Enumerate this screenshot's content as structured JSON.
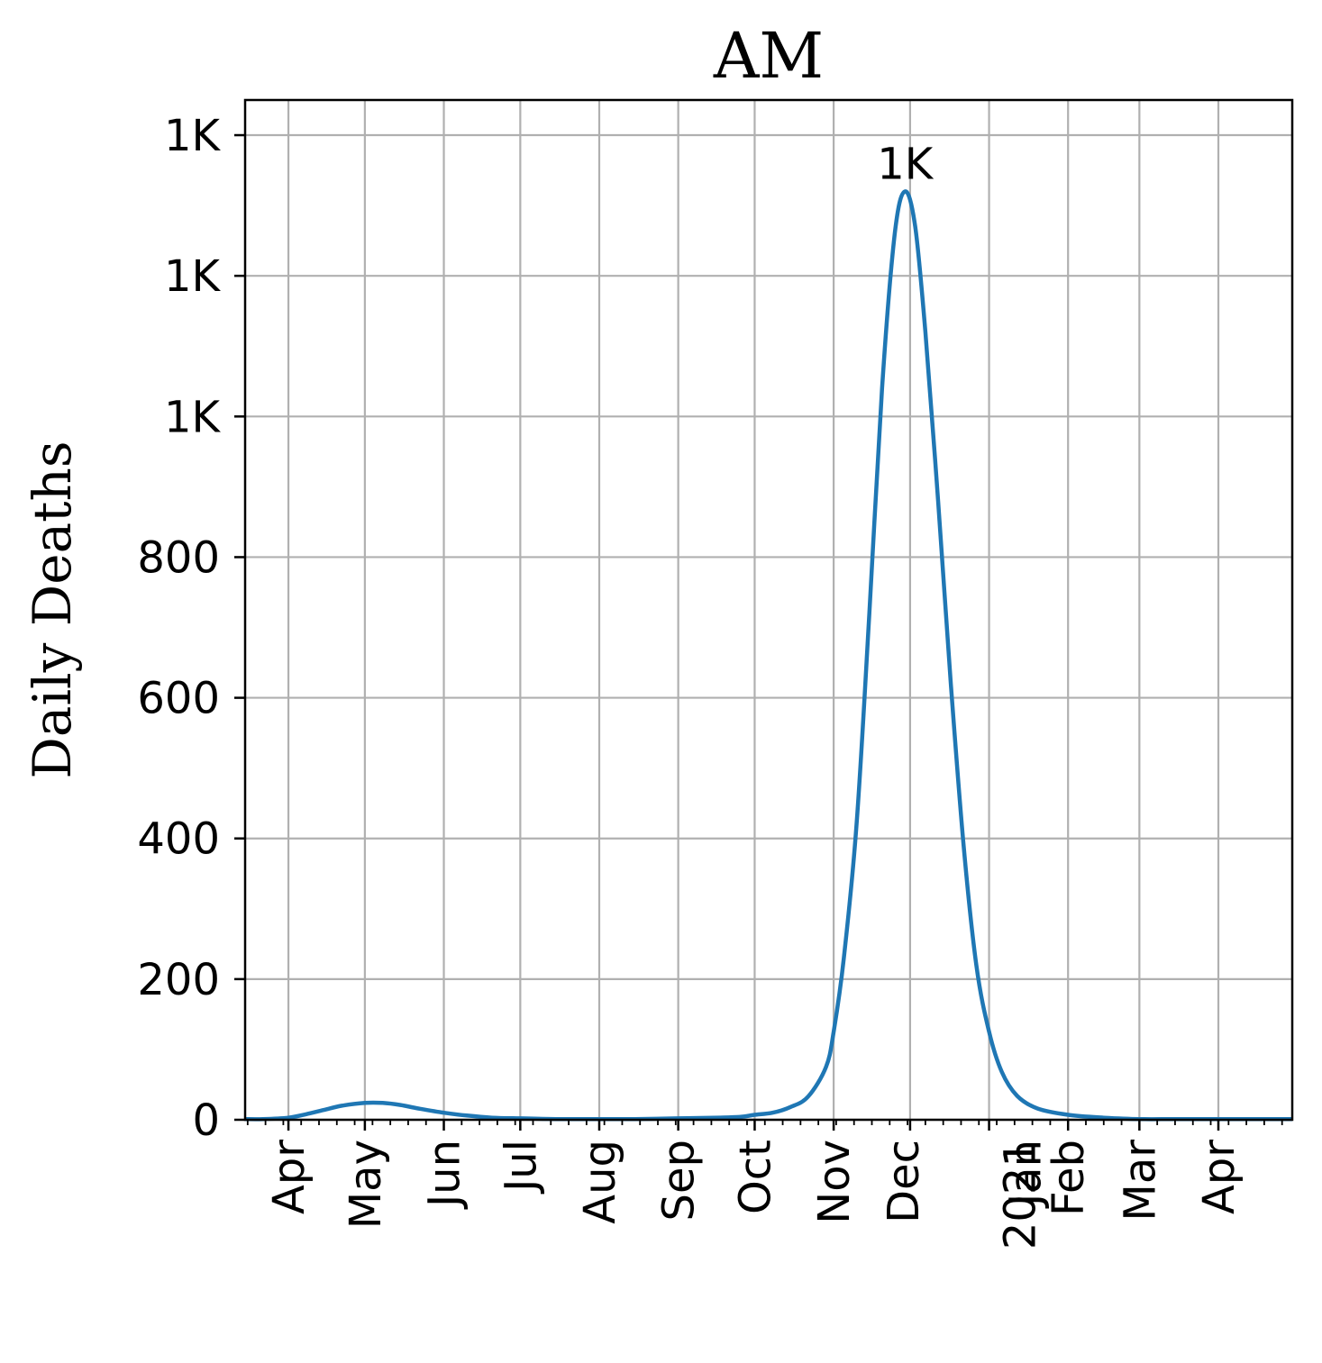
{
  "chart_data": {
    "type": "line",
    "title": "AM",
    "xlabel": "",
    "ylabel": "Daily Deaths",
    "x_tick_labels": [
      "Apr",
      "May",
      "Jun",
      "Jul",
      "Aug",
      "Sep",
      "Oct",
      "Nov",
      "Dec",
      "Jan",
      "2021",
      "Feb",
      "Mar",
      "Apr"
    ],
    "y_tick_labels": [
      "0",
      "200",
      "400",
      "600",
      "800",
      "1K",
      "1K",
      "1K"
    ],
    "y_ticks": [
      0,
      200,
      400,
      600,
      800,
      1000,
      1200,
      1400
    ],
    "ylim": [
      0,
      1450
    ],
    "xlim": [
      "2020-03-15",
      "2021-04-30"
    ],
    "grid": true,
    "legend": "none",
    "colors": {
      "line": "#1f77b4",
      "grid": "#b0b0b0"
    },
    "peak_annotation": {
      "text": "1K",
      "x": "2020-11-29",
      "y": 1320
    },
    "series": [
      {
        "x": [
          "2020-03-15",
          "2020-03-22",
          "2020-04-01",
          "2020-04-08",
          "2020-04-15",
          "2020-04-22",
          "2020-05-01",
          "2020-05-08",
          "2020-05-15",
          "2020-05-22",
          "2020-06-01",
          "2020-06-10",
          "2020-06-20",
          "2020-07-01",
          "2020-07-15",
          "2020-08-01",
          "2020-08-15",
          "2020-09-01",
          "2020-09-15",
          "2020-09-25",
          "2020-10-01",
          "2020-10-08",
          "2020-10-15",
          "2020-10-22",
          "2020-10-29",
          "2020-11-01",
          "2020-11-05",
          "2020-11-10",
          "2020-11-15",
          "2020-11-20",
          "2020-11-25",
          "2020-11-29",
          "2020-12-03",
          "2020-12-07",
          "2020-12-12",
          "2020-12-17",
          "2020-12-22",
          "2020-12-27",
          "2021-01-01",
          "2021-01-06",
          "2021-01-12",
          "2021-01-20",
          "2021-02-01",
          "2021-02-15",
          "2021-03-01",
          "2021-03-15",
          "2021-04-01",
          "2021-04-30"
        ],
        "y": [
          1,
          1,
          3,
          8,
          14,
          20,
          24,
          24,
          21,
          16,
          10,
          6,
          3,
          2,
          1,
          1,
          1,
          2,
          3,
          4,
          7,
          10,
          18,
          33,
          75,
          125,
          230,
          420,
          720,
          1040,
          1260,
          1320,
          1270,
          1120,
          880,
          620,
          390,
          220,
          125,
          68,
          34,
          16,
          7,
          3,
          1,
          1,
          1,
          1
        ]
      }
    ]
  }
}
